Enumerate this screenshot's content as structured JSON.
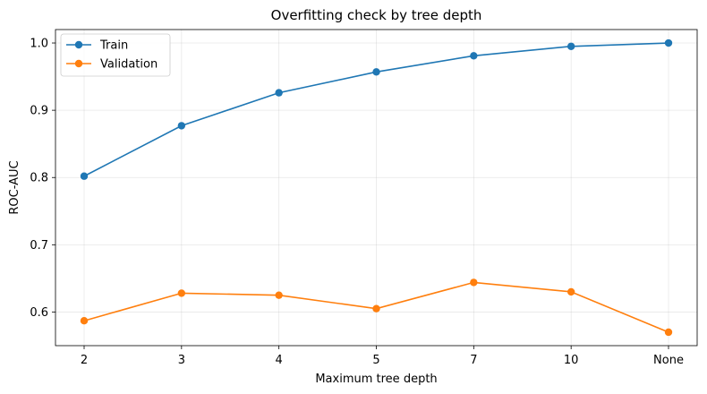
{
  "chart_data": {
    "type": "line",
    "title": "Overfitting check by tree depth",
    "xlabel": "Maximum tree depth",
    "ylabel": "ROC-AUC",
    "categories": [
      "2",
      "3",
      "4",
      "5",
      "7",
      "10",
      "None"
    ],
    "ylim": [
      0.55,
      1.02
    ],
    "yticks": [
      "0.6",
      "0.7",
      "0.8",
      "0.9",
      "1.0"
    ],
    "grid": true,
    "legend_position": "upper-left",
    "marker": "circle",
    "series": [
      {
        "name": "Train",
        "color": "#1f77b4",
        "values": [
          0.802,
          0.877,
          0.926,
          0.957,
          0.981,
          0.995,
          1.0
        ]
      },
      {
        "name": "Validation",
        "color": "#ff7f0e",
        "values": [
          0.587,
          0.628,
          0.625,
          0.605,
          0.644,
          0.63,
          0.57
        ]
      }
    ]
  }
}
